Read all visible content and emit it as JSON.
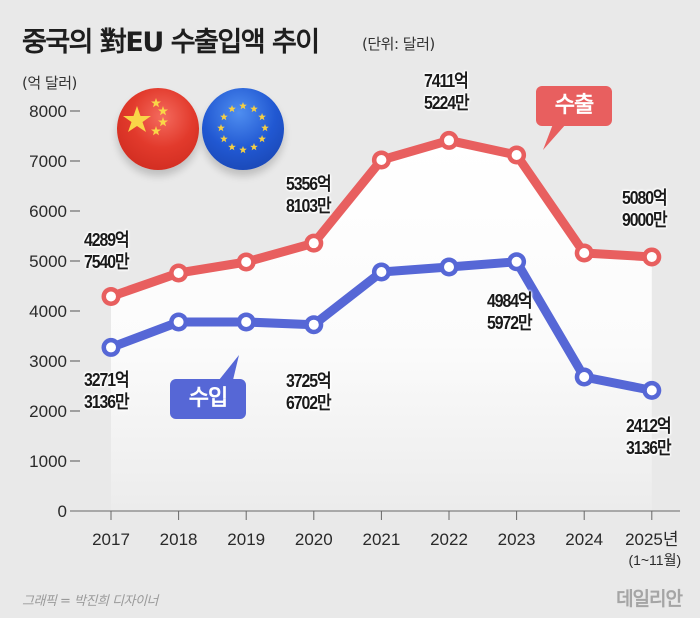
{
  "header": {
    "title": "중국의 對EU 수출입액 추이",
    "unit_note": "(단위: 달러)"
  },
  "y_unit_label": "(억 달러)",
  "flags": [
    {
      "name": "china-flag-icon",
      "country": "China"
    },
    {
      "name": "eu-flag-icon",
      "country": "EU"
    }
  ],
  "callouts": {
    "export": "수출",
    "import": "수입"
  },
  "colors": {
    "export": "#e85f5f",
    "import": "#5667d6",
    "background": "#e9e9e9"
  },
  "footer": {
    "credit": "그래픽 = 박진희 디자이너",
    "logo": "데일리안"
  },
  "chart_data": {
    "type": "line",
    "title": "중국의 對EU 수출입액 추이",
    "subtitle": "(단위: 달러)",
    "xlabel": "",
    "ylabel": "(억 달러)",
    "categories": [
      "2017",
      "2018",
      "2019",
      "2020",
      "2021",
      "2022",
      "2023",
      "2024",
      "2025년"
    ],
    "category_sublabels": [
      "",
      "",
      "",
      "",
      "",
      "",
      "",
      "",
      "(1~11월)"
    ],
    "yticks": [
      0,
      1000,
      2000,
      3000,
      4000,
      5000,
      6000,
      7000,
      8000
    ],
    "ylim": [
      0,
      8000
    ],
    "grid": false,
    "series": [
      {
        "name": "수출",
        "values": [
          4289.754,
          4760,
          4980,
          5356.8103,
          7020,
          7411.5224,
          7120,
          5160,
          5080.9
        ],
        "labels": [
          {
            "index": 0,
            "line1": "4289억",
            "line2": "7540만"
          },
          {
            "index": 3,
            "line1": "5356억",
            "line2": "8103만"
          },
          {
            "index": 5,
            "line1": "7411억",
            "line2": "5224만"
          },
          {
            "index": 8,
            "line1": "5080억",
            "line2": "9000만"
          }
        ]
      },
      {
        "name": "수입",
        "values": [
          3271.3136,
          3780,
          3780,
          3725.6702,
          4780,
          4880,
          4984.5972,
          2680,
          2412.3136
        ],
        "labels": [
          {
            "index": 0,
            "line1": "3271억",
            "line2": "3136만"
          },
          {
            "index": 3,
            "line1": "3725억",
            "line2": "6702만"
          },
          {
            "index": 6,
            "line1": "4984억",
            "line2": "5972만"
          },
          {
            "index": 8,
            "line1": "2412억",
            "line2": "3136만"
          }
        ]
      }
    ]
  }
}
